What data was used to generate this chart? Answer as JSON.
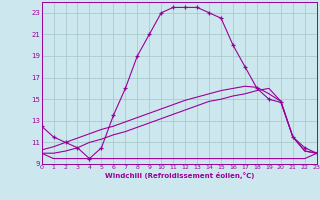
{
  "xlabel": "Windchill (Refroidissement éolien,°C)",
  "bg_color": "#cce8ee",
  "line_color": "#990099",
  "grid_color": "#aacccc",
  "ylim": [
    9,
    24
  ],
  "xlim": [
    0,
    23
  ],
  "yticks": [
    9,
    11,
    13,
    15,
    17,
    19,
    21,
    23
  ],
  "xticks": [
    0,
    1,
    2,
    3,
    4,
    5,
    6,
    7,
    8,
    9,
    10,
    11,
    12,
    13,
    14,
    15,
    16,
    17,
    18,
    19,
    20,
    21,
    22,
    23
  ],
  "line1_x": [
    0,
    1,
    2,
    3,
    4,
    5,
    6,
    7,
    8,
    9,
    10,
    11,
    12,
    13,
    14,
    15,
    16,
    17,
    18,
    19,
    20,
    21,
    22,
    23
  ],
  "line1_y": [
    12.5,
    11.5,
    11.0,
    10.5,
    9.5,
    10.5,
    13.5,
    16.0,
    19.0,
    21.0,
    23.0,
    23.5,
    23.5,
    23.5,
    23.0,
    22.5,
    20.0,
    18.0,
    16.0,
    15.0,
    14.7,
    11.5,
    10.5,
    10.0
  ],
  "line2_x": [
    0,
    1,
    2,
    3,
    4,
    5,
    6,
    7,
    8,
    9,
    10,
    11,
    12,
    13,
    14,
    15,
    16,
    17,
    18,
    19,
    20,
    21,
    22,
    23
  ],
  "line2_y": [
    10.0,
    9.5,
    9.5,
    9.5,
    9.5,
    9.5,
    9.5,
    9.5,
    9.5,
    9.5,
    9.5,
    9.5,
    9.5,
    9.5,
    9.5,
    9.5,
    9.5,
    9.5,
    9.5,
    9.5,
    9.5,
    9.5,
    9.5,
    10.0
  ],
  "line3_x": [
    0,
    1,
    2,
    3,
    4,
    5,
    6,
    7,
    8,
    9,
    10,
    11,
    12,
    13,
    14,
    15,
    16,
    17,
    18,
    19,
    20,
    21,
    22,
    23
  ],
  "line3_y": [
    10.0,
    10.0,
    10.2,
    10.5,
    11.0,
    11.3,
    11.7,
    12.0,
    12.4,
    12.8,
    13.2,
    13.6,
    14.0,
    14.4,
    14.8,
    15.0,
    15.3,
    15.5,
    15.8,
    16.0,
    14.8,
    11.5,
    10.2,
    10.0
  ],
  "line4_x": [
    0,
    1,
    2,
    3,
    4,
    5,
    6,
    7,
    8,
    9,
    10,
    11,
    12,
    13,
    14,
    15,
    16,
    17,
    18,
    19,
    20,
    21,
    22,
    23
  ],
  "line4_y": [
    10.3,
    10.6,
    11.0,
    11.4,
    11.8,
    12.2,
    12.5,
    12.9,
    13.3,
    13.7,
    14.1,
    14.5,
    14.9,
    15.2,
    15.5,
    15.8,
    16.0,
    16.2,
    16.1,
    15.5,
    14.8,
    11.5,
    10.2,
    10.0
  ]
}
